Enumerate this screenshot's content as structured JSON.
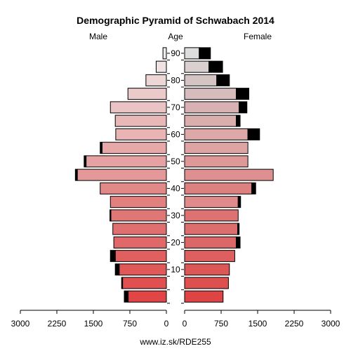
{
  "chart_data": {
    "type": "bar",
    "subtype": "population-pyramid",
    "title": "Demographic Pyramid of Schwabach 2014",
    "left_label": "Male",
    "center_label": "Age",
    "right_label": "Female",
    "source": "www.iz.sk/RDE255",
    "x_ticks": [
      "3000",
      "2250",
      "1500",
      "750",
      "0",
      "750",
      "1500",
      "2250",
      "3000"
    ],
    "y_ticks": [
      "10",
      "20",
      "30",
      "40",
      "50",
      "60",
      "70",
      "80",
      "90"
    ],
    "xlim": [
      0,
      3000
    ],
    "age_groups": [
      "0-4",
      "5-9",
      "10-14",
      "15-19",
      "20-24",
      "25-29",
      "30-34",
      "35-39",
      "40-44",
      "45-49",
      "50-54",
      "55-59",
      "60-64",
      "65-69",
      "70-74",
      "75-79",
      "80-84",
      "85-89",
      "90-94"
    ],
    "male_values": [
      785,
      900,
      970,
      1050,
      1080,
      1100,
      1140,
      1150,
      1360,
      1830,
      1650,
      1320,
      1040,
      1050,
      1150,
      790,
      420,
      210,
      70
    ],
    "male_surplus": [
      80,
      20,
      80,
      100,
      0,
      0,
      20,
      0,
      0,
      40,
      40,
      40,
      0,
      0,
      0,
      0,
      0,
      0,
      0
    ],
    "female_values": [
      790,
      900,
      920,
      1030,
      1060,
      1090,
      1100,
      1100,
      1380,
      1820,
      1300,
      1300,
      1300,
      1060,
      1120,
      1060,
      660,
      500,
      300
    ],
    "female_surplus": [
      0,
      0,
      0,
      0,
      80,
      30,
      0,
      50,
      80,
      0,
      0,
      0,
      240,
      80,
      160,
      260,
      260,
      280,
      230
    ],
    "colors": {
      "male": [
        "#e24545",
        "#e05050",
        "#e05858",
        "#e06060",
        "#e06868",
        "#e07070",
        "#e07777",
        "#e28080",
        "#e38888",
        "#e49898",
        "#e6a2a2",
        "#e6a8a8",
        "#e8b4b4",
        "#e8b8b8",
        "#eac4c4",
        "#ebcaca",
        "#ecd6d6",
        "#eee2e2",
        "#f0ecec"
      ],
      "female": [
        "#df4444",
        "#de4f4f",
        "#dd5757",
        "#dd5f5f",
        "#dc6767",
        "#dc6e6e",
        "#dc7272",
        "#df8b8b",
        "#dc8080",
        "#de9090",
        "#de9898",
        "#dea4a4",
        "#dca8a8",
        "#dbaeae",
        "#d8b2b2",
        "#d6bcbc",
        "#d4c4c4",
        "#dbd0d0",
        "#dddddd"
      ],
      "surplus": "#000000"
    }
  }
}
